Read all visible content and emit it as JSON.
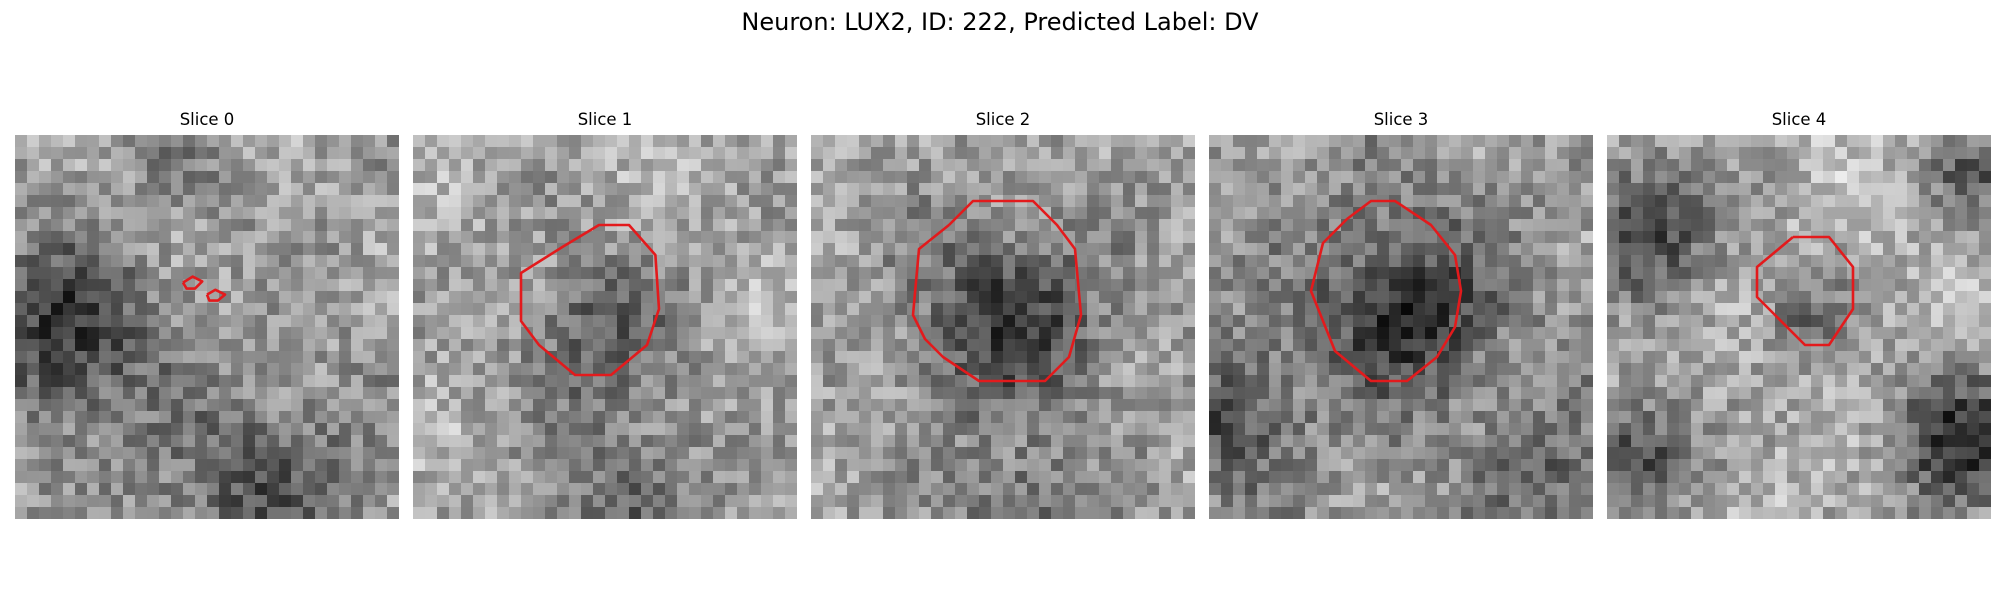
{
  "figure": {
    "title": "Neuron: LUX2, ID: 222, Predicted Label: DV"
  },
  "slices": [
    {
      "title": "Slice 0"
    },
    {
      "title": "Slice 1"
    },
    {
      "title": "Slice 2"
    },
    {
      "title": "Slice 3"
    },
    {
      "title": "Slice 4"
    }
  ],
  "colors": {
    "contour": "#e31a1c",
    "colormap": "gray"
  }
}
